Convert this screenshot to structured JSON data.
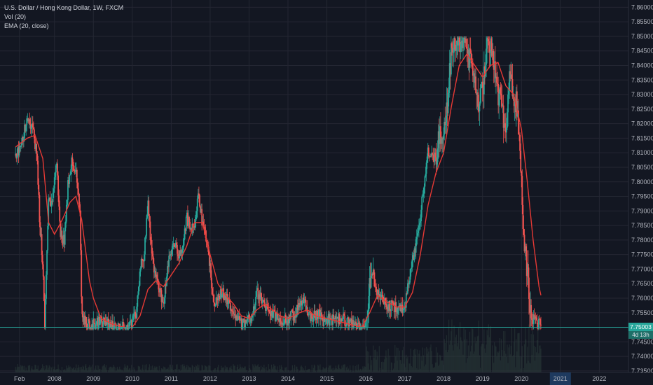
{
  "legend": {
    "symbol": "U.S. Dollar / Hong Kong Dollar, 1W, FXCM",
    "vol": "Vol (20)",
    "ema": "EMA (20, close)"
  },
  "price_badge": "7.75003",
  "timer_badge": "4d 13h",
  "colors": {
    "background": "#131722",
    "grid": "#242733",
    "up": "#26a69a",
    "down": "#ef5350",
    "ema": "#e53935",
    "price_line": "#26a69a",
    "volume": "#2b3d3a"
  },
  "chart_data": {
    "type": "candlestick",
    "y_ticks": [
      "7.86000",
      "7.85500",
      "7.85000",
      "7.84500",
      "7.84000",
      "7.83500",
      "7.83000",
      "7.82500",
      "7.82000",
      "7.81500",
      "7.81000",
      "7.80500",
      "7.80000",
      "7.79500",
      "7.79000",
      "7.78500",
      "7.78000",
      "7.77500",
      "7.77000",
      "7.76500",
      "7.76000",
      "7.75500",
      "7.75000",
      "7.74500",
      "7.74000",
      "7.73500"
    ],
    "ylim": [
      7.7345,
      7.8625
    ],
    "x_ticks": [
      "Feb",
      "2008",
      "2009",
      "2010",
      "2011",
      "2012",
      "2013",
      "2014",
      "2015",
      "2016",
      "2017",
      "2018",
      "2019",
      "2020",
      "2021",
      "2022"
    ],
    "x_tick_years": [
      2007.1,
      2008,
      2009,
      2010,
      2011,
      2012,
      2013,
      2014,
      2015,
      2016,
      2017,
      2018,
      2019,
      2020,
      2021,
      2022
    ],
    "xlim": [
      2006.6,
      2022.75
    ],
    "last_price": 7.75003,
    "highlighted_tick": "2021",
    "price_path": [
      [
        2007.0,
        7.809
      ],
      [
        2007.15,
        7.812
      ],
      [
        2007.3,
        7.823
      ],
      [
        2007.45,
        7.818
      ],
      [
        2007.55,
        7.808
      ],
      [
        2007.62,
        7.786
      ],
      [
        2007.7,
        7.772
      ],
      [
        2007.75,
        7.751
      ],
      [
        2007.85,
        7.794
      ],
      [
        2007.95,
        7.793
      ],
      [
        2008.05,
        7.808
      ],
      [
        2008.15,
        7.782
      ],
      [
        2008.25,
        7.78
      ],
      [
        2008.35,
        7.8
      ],
      [
        2008.45,
        7.808
      ],
      [
        2008.55,
        7.803
      ],
      [
        2008.65,
        7.792
      ],
      [
        2008.7,
        7.755
      ],
      [
        2008.75,
        7.752
      ],
      [
        2008.85,
        7.751
      ],
      [
        2009.0,
        7.751
      ],
      [
        2009.2,
        7.752
      ],
      [
        2009.4,
        7.751
      ],
      [
        2009.6,
        7.75
      ],
      [
        2009.8,
        7.75
      ],
      [
        2010.0,
        7.751
      ],
      [
        2010.1,
        7.755
      ],
      [
        2010.2,
        7.77
      ],
      [
        2010.3,
        7.775
      ],
      [
        2010.4,
        7.793
      ],
      [
        2010.5,
        7.775
      ],
      [
        2010.6,
        7.767
      ],
      [
        2010.7,
        7.763
      ],
      [
        2010.8,
        7.758
      ],
      [
        2010.9,
        7.77
      ],
      [
        2011.0,
        7.776
      ],
      [
        2011.1,
        7.779
      ],
      [
        2011.2,
        7.774
      ],
      [
        2011.3,
        7.778
      ],
      [
        2011.4,
        7.788
      ],
      [
        2011.5,
        7.783
      ],
      [
        2011.6,
        7.786
      ],
      [
        2011.7,
        7.797
      ],
      [
        2011.8,
        7.785
      ],
      [
        2011.9,
        7.781
      ],
      [
        2012.0,
        7.77
      ],
      [
        2012.1,
        7.758
      ],
      [
        2012.2,
        7.76
      ],
      [
        2012.3,
        7.762
      ],
      [
        2012.4,
        7.761
      ],
      [
        2012.5,
        7.757
      ],
      [
        2012.6,
        7.756
      ],
      [
        2012.7,
        7.753
      ],
      [
        2012.8,
        7.751
      ],
      [
        2012.9,
        7.752
      ],
      [
        2013.0,
        7.753
      ],
      [
        2013.1,
        7.755
      ],
      [
        2013.2,
        7.762
      ],
      [
        2013.3,
        7.76
      ],
      [
        2013.4,
        7.757
      ],
      [
        2013.5,
        7.756
      ],
      [
        2013.6,
        7.754
      ],
      [
        2013.7,
        7.754
      ],
      [
        2013.8,
        7.753
      ],
      [
        2013.9,
        7.752
      ],
      [
        2014.0,
        7.753
      ],
      [
        2014.2,
        7.755
      ],
      [
        2014.4,
        7.76
      ],
      [
        2014.5,
        7.756
      ],
      [
        2014.6,
        7.753
      ],
      [
        2014.8,
        7.755
      ],
      [
        2014.9,
        7.752
      ],
      [
        2015.0,
        7.753
      ],
      [
        2015.2,
        7.752
      ],
      [
        2015.4,
        7.753
      ],
      [
        2015.6,
        7.751
      ],
      [
        2015.8,
        7.75
      ],
      [
        2015.95,
        7.75
      ],
      [
        2016.0,
        7.752
      ],
      [
        2016.08,
        7.762
      ],
      [
        2016.15,
        7.773
      ],
      [
        2016.25,
        7.762
      ],
      [
        2016.35,
        7.76
      ],
      [
        2016.5,
        7.758
      ],
      [
        2016.7,
        7.757
      ],
      [
        2016.9,
        7.756
      ],
      [
        2017.0,
        7.757
      ],
      [
        2017.1,
        7.765
      ],
      [
        2017.2,
        7.772
      ],
      [
        2017.3,
        7.779
      ],
      [
        2017.4,
        7.788
      ],
      [
        2017.5,
        7.8
      ],
      [
        2017.6,
        7.811
      ],
      [
        2017.7,
        7.809
      ],
      [
        2017.8,
        7.808
      ],
      [
        2017.9,
        7.818
      ],
      [
        2018.0,
        7.815
      ],
      [
        2018.1,
        7.828
      ],
      [
        2018.2,
        7.845
      ],
      [
        2018.3,
        7.848
      ],
      [
        2018.4,
        7.849
      ],
      [
        2018.5,
        7.848
      ],
      [
        2018.6,
        7.846
      ],
      [
        2018.7,
        7.84
      ],
      [
        2018.8,
        7.835
      ],
      [
        2018.9,
        7.828
      ],
      [
        2019.0,
        7.831
      ],
      [
        2019.1,
        7.847
      ],
      [
        2019.2,
        7.849
      ],
      [
        2019.3,
        7.84
      ],
      [
        2019.4,
        7.83
      ],
      [
        2019.5,
        7.826
      ],
      [
        2019.6,
        7.815
      ],
      [
        2019.7,
        7.839
      ],
      [
        2019.8,
        7.83
      ],
      [
        2019.9,
        7.826
      ],
      [
        2020.0,
        7.8
      ],
      [
        2020.08,
        7.775
      ],
      [
        2020.15,
        7.77
      ],
      [
        2020.2,
        7.758
      ],
      [
        2020.28,
        7.752
      ],
      [
        2020.35,
        7.753
      ],
      [
        2020.42,
        7.751
      ],
      [
        2020.5,
        7.7525
      ]
    ],
    "ema_path": [
      [
        2007.0,
        7.812
      ],
      [
        2007.3,
        7.815
      ],
      [
        2007.5,
        7.816
      ],
      [
        2007.7,
        7.808
      ],
      [
        2007.85,
        7.786
      ],
      [
        2008.0,
        7.782
      ],
      [
        2008.2,
        7.787
      ],
      [
        2008.4,
        7.793
      ],
      [
        2008.55,
        7.795
      ],
      [
        2008.7,
        7.787
      ],
      [
        2008.9,
        7.766
      ],
      [
        2009.0,
        7.76
      ],
      [
        2009.2,
        7.753
      ],
      [
        2009.5,
        7.751
      ],
      [
        2009.8,
        7.75
      ],
      [
        2010.0,
        7.75
      ],
      [
        2010.2,
        7.754
      ],
      [
        2010.4,
        7.763
      ],
      [
        2010.6,
        7.766
      ],
      [
        2010.8,
        7.764
      ],
      [
        2011.0,
        7.768
      ],
      [
        2011.2,
        7.772
      ],
      [
        2011.4,
        7.778
      ],
      [
        2011.6,
        7.786
      ],
      [
        2011.8,
        7.786
      ],
      [
        2012.0,
        7.775
      ],
      [
        2012.2,
        7.765
      ],
      [
        2012.4,
        7.761
      ],
      [
        2012.6,
        7.758
      ],
      [
        2012.8,
        7.754
      ],
      [
        2013.0,
        7.753
      ],
      [
        2013.2,
        7.756
      ],
      [
        2013.4,
        7.758
      ],
      [
        2013.6,
        7.756
      ],
      [
        2013.8,
        7.754
      ],
      [
        2014.0,
        7.753
      ],
      [
        2014.3,
        7.755
      ],
      [
        2014.5,
        7.756
      ],
      [
        2014.7,
        7.754
      ],
      [
        2015.0,
        7.753
      ],
      [
        2015.3,
        7.752
      ],
      [
        2015.6,
        7.751
      ],
      [
        2015.9,
        7.75
      ],
      [
        2016.1,
        7.755
      ],
      [
        2016.3,
        7.761
      ],
      [
        2016.5,
        7.759
      ],
      [
        2016.8,
        7.757
      ],
      [
        2017.0,
        7.757
      ],
      [
        2017.2,
        7.762
      ],
      [
        2017.4,
        7.775
      ],
      [
        2017.6,
        7.792
      ],
      [
        2017.8,
        7.803
      ],
      [
        2018.0,
        7.81
      ],
      [
        2018.2,
        7.826
      ],
      [
        2018.4,
        7.84
      ],
      [
        2018.6,
        7.844
      ],
      [
        2018.8,
        7.84
      ],
      [
        2019.0,
        7.836
      ],
      [
        2019.2,
        7.84
      ],
      [
        2019.4,
        7.841
      ],
      [
        2019.6,
        7.833
      ],
      [
        2019.8,
        7.83
      ],
      [
        2020.0,
        7.818
      ],
      [
        2020.15,
        7.8
      ],
      [
        2020.3,
        7.78
      ],
      [
        2020.45,
        7.764
      ],
      [
        2020.5,
        7.761
      ]
    ]
  }
}
